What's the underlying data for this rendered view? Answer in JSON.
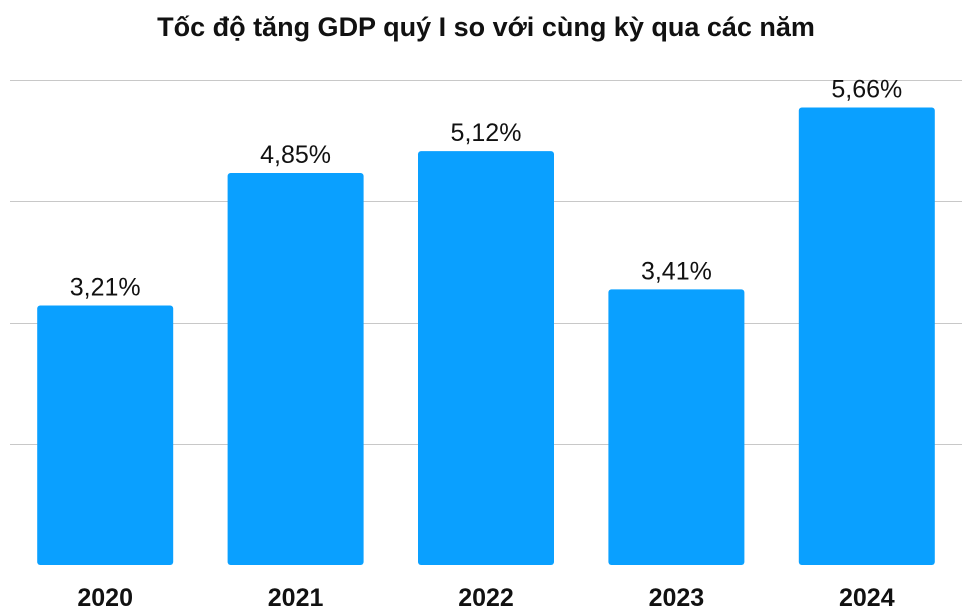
{
  "chart_data": {
    "type": "bar",
    "title": "Tốc độ tăng GDP quý I so với cùng kỳ qua các năm",
    "categories": [
      "2020",
      "2021",
      "2022",
      "2023",
      "2024"
    ],
    "series": [
      {
        "values": [
          3.21,
          4.85,
          5.12,
          3.41,
          5.66
        ],
        "value_labels": [
          "3,21%",
          "4,85%",
          "5,12%",
          "3,41%",
          "5,66%"
        ]
      }
    ],
    "ylim": [
      0,
      6
    ],
    "grid": true,
    "bar_color": "#0AA0FF",
    "legend": "none"
  }
}
